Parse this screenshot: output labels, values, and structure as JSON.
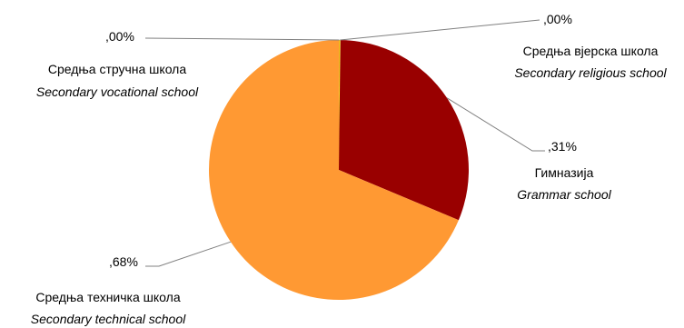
{
  "chart_data": {
    "type": "pie",
    "slices": [
      {
        "label": "Гимназија",
        "label_en": "Grammar school",
        "value_text": ",31%",
        "value": 0.31,
        "color": "#990000"
      },
      {
        "label": "Средња техничка школа",
        "label_en": "Secondary technical school",
        "value_text": ",68%",
        "value": 0.68,
        "color": "#FF9933"
      },
      {
        "label": "Средња стручна школа",
        "label_en": "Secondary vocational school",
        "value_text": ",00%",
        "value": 0.0,
        "color": "#FFCC00"
      },
      {
        "label": "Средња вјерска школа",
        "label_en": "Secondary religious school",
        "value_text": ",00%",
        "value": 0.0,
        "color": "#FFFF66"
      }
    ]
  }
}
